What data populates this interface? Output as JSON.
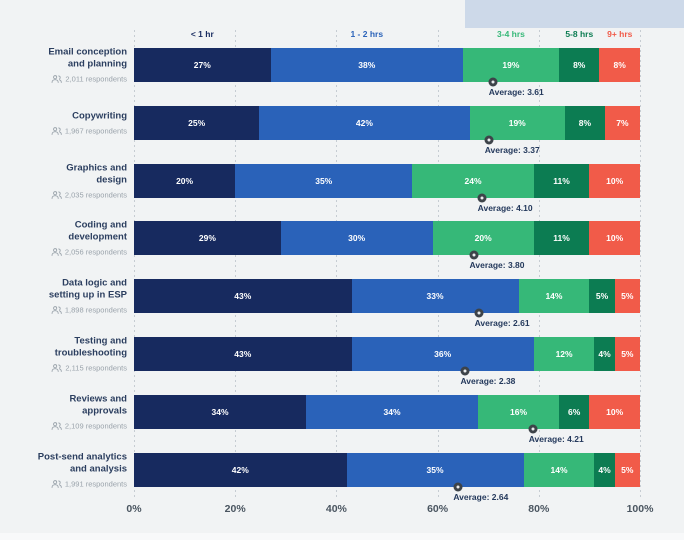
{
  "page": {
    "background_color": "#f1f3f4",
    "banner_color": "#cdd9e9",
    "bottom_strip_color": "#f8f9fa"
  },
  "labels": {
    "average_prefix": "Average:",
    "respondents_suffix": "respondents"
  },
  "chart_data": {
    "type": "bar",
    "stacked": true,
    "orientation": "horizontal",
    "xlim": [
      0,
      100
    ],
    "x_ticks": [
      "0%",
      "20%",
      "40%",
      "60%",
      "80%",
      "100%"
    ],
    "legend_position": "top",
    "grid": "dotted-vertical",
    "series": [
      {
        "name": "< 1 hr",
        "color": "#172a5f",
        "values": [
          27,
          25,
          20,
          29,
          43,
          43,
          34,
          42
        ]
      },
      {
        "name": "1 - 2 hrs",
        "color": "#2a62b9",
        "values": [
          38,
          42,
          35,
          30,
          33,
          36,
          34,
          35
        ]
      },
      {
        "name": "3-4 hrs",
        "color": "#36b878",
        "values": [
          19,
          19,
          24,
          20,
          14,
          12,
          16,
          14
        ]
      },
      {
        "name": "5-8 hrs",
        "color": "#0c7c52",
        "values": [
          8,
          8,
          11,
          11,
          5,
          4,
          6,
          4
        ]
      },
      {
        "name": "9+ hrs",
        "color": "#f15b49",
        "values": [
          8,
          7,
          10,
          10,
          5,
          5,
          10,
          5
        ]
      }
    ],
    "categories": [
      "Email conception and planning",
      "Copywriting",
      "Graphics and design",
      "Coding and development",
      "Data logic and setting up in ESP",
      "Testing and troubleshooting",
      "Reviews and approvals",
      "Post-send analytics and analysis"
    ],
    "category_label_lines": [
      [
        "Email conception",
        "and planning"
      ],
      [
        "Copywriting"
      ],
      [
        "Graphics and",
        "design"
      ],
      [
        "Coding and",
        "development"
      ],
      [
        "Data logic and",
        "setting up in ESP"
      ],
      [
        "Testing and",
        "troubleshooting"
      ],
      [
        "Reviews and",
        "approvals"
      ],
      [
        "Post-send analytics",
        "and analysis"
      ]
    ],
    "respondents": [
      "2,011",
      "1,967",
      "2,035",
      "2,056",
      "1,898",
      "2,115",
      "2,109",
      "1,991"
    ],
    "averages": [
      "3.61",
      "3.37",
      "4.10",
      "3.80",
      "2.61",
      "2.38",
      "4.21",
      "2.64"
    ],
    "average_marker_pct": [
      71.0,
      70.2,
      68.8,
      67.2,
      68.2,
      65.4,
      78.9,
      64.0
    ]
  }
}
